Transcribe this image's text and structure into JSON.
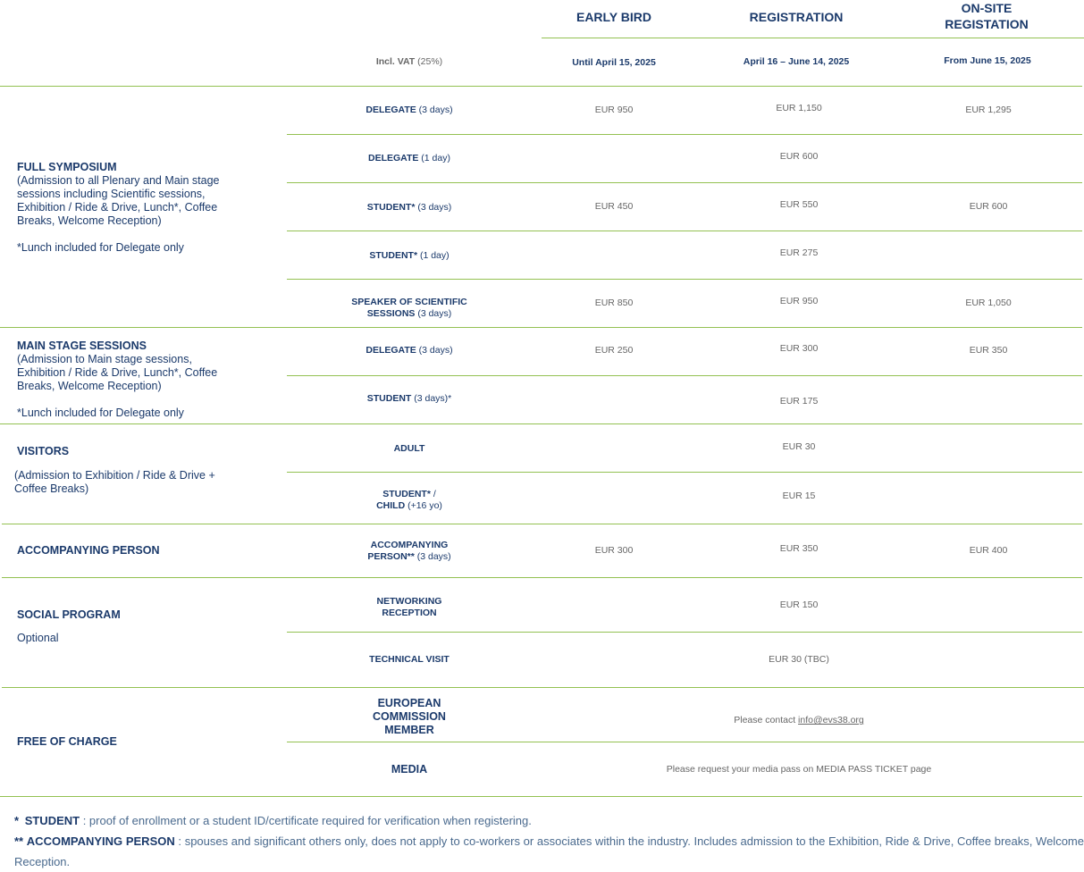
{
  "columns": {
    "early_bird": {
      "title": "EARLY BIRD",
      "date": "Until April 15, 2025"
    },
    "registration": {
      "title": "REGISTRATION",
      "date": "April 16 – June 14, 2025"
    },
    "onsite": {
      "title_1": "ON-SITE",
      "title_2": "REGISTATION",
      "date": "From June 15, 2025"
    },
    "vat_label": "Incl. VAT",
    "vat_rate": "(25%)"
  },
  "groups": {
    "full": {
      "title": "FULL SYMPOSIUM",
      "desc": "(Admission to all Plenary and Main stage sessions including Scientific sessions, Exhibition / Ride & Drive,  Lunch*, Coffee Breaks, Welcome Reception)",
      "note": "*Lunch included for Delegate only"
    },
    "main": {
      "title": "MAIN STAGE SESSIONS",
      "desc": "(Admission to Main stage sessions, Exhibition / Ride & Drive, Lunch*,  Coffee Breaks, Welcome Reception)",
      "note": "*Lunch included for Delegate only"
    },
    "visitors": {
      "title": "VISITORS",
      "desc": "(Admission to Exhibition / Ride & Drive + Coffee Breaks)"
    },
    "accompanying": {
      "title": "ACCOMPANYING PERSON"
    },
    "social": {
      "title": "SOCIAL PROGRAM",
      "desc": "Optional"
    },
    "free": {
      "title": "FREE OF CHARGE"
    }
  },
  "rows": {
    "fs_delegate3": {
      "b": "DELEGATE",
      "n": " (3 days)",
      "early": "EUR 950",
      "reg": "EUR 1,150",
      "onsite": "EUR 1,295"
    },
    "fs_delegate1": {
      "b": "DELEGATE",
      "n": " (1 day)",
      "reg": "EUR 600"
    },
    "fs_student3": {
      "b": "STUDENT*",
      "n": " (3 days)",
      "early": "EUR 450",
      "reg": "EUR 550",
      "onsite": "EUR 600"
    },
    "fs_student1": {
      "b": "STUDENT*",
      "n": " (1 day)",
      "reg": "EUR 275"
    },
    "fs_speaker": {
      "b1": "SPEAKER OF SCIENTIFIC",
      "b2": "SESSIONS",
      "n": " (3 days)",
      "early": "EUR 850",
      "reg": "EUR 950",
      "onsite": "EUR 1,050"
    },
    "ms_delegate": {
      "b": "DELEGATE",
      "n": " (3 days)",
      "early": "EUR 250",
      "reg": "EUR 300",
      "onsite": "EUR 350"
    },
    "ms_student": {
      "b": "STUDENT",
      "n": " (3 days)*",
      "reg": "EUR 175"
    },
    "v_adult": {
      "b": "ADULT",
      "reg": "EUR 30"
    },
    "v_student": {
      "b1": "STUDENT*",
      "n1": " /",
      "b2": "CHILD",
      "n2": " (+16 yo)",
      "reg": "EUR 15"
    },
    "acc": {
      "b1": "ACCOMPANYING",
      "b2": "PERSON**",
      "n": " (3 days)",
      "early": "EUR 300",
      "reg": "EUR 350",
      "onsite": "EUR 400"
    },
    "networking": {
      "b1": "NETWORKING",
      "b2": "RECEPTION",
      "reg": "EUR 150"
    },
    "technical": {
      "b": "TECHNICAL VISIT",
      "reg": "EUR 30 (TBC)"
    },
    "ec": {
      "l1": "EUROPEAN",
      "l2": "COMMISSION",
      "l3": "MEMBER",
      "text": "Please contact ",
      "link": "info@evs38.org"
    },
    "media": {
      "b": "MEDIA",
      "text": "Please request your media pass on MEDIA PASS TICKET page"
    }
  },
  "footnotes": {
    "student_star": "*",
    "student_label": "STUDENT",
    "student_text": " : proof of enrollment or a student ID/certificate required for verification when registering.",
    "acc_star": "**",
    "acc_label": "ACCOMPANYING PERSON",
    "acc_text": " : spouses and significant others only, does not apply to co-workers or associates within the industry. Includes admission to the Exhibition, Ride & Drive, Coffee breaks, Welcome Reception."
  },
  "colors": {
    "accent_line": "#93c152",
    "text_primary": "#1b3a6b",
    "text_muted": "#666666"
  }
}
